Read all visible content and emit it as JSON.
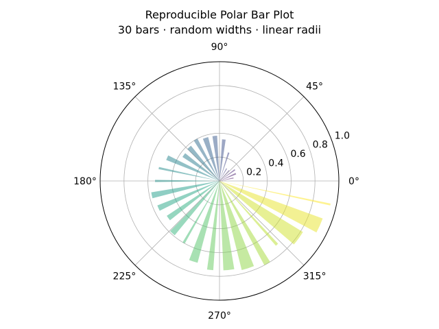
{
  "chart_data": {
    "type": "bar",
    "projection": "polar",
    "title": "Reproducible Polar Bar Plot",
    "subtitle": "30 bars · random widths · linear radii",
    "colormap": "viridis",
    "bar_alpha": 0.5,
    "rlim": [
      0,
      1.0
    ],
    "r_ticks": [
      "0.2",
      "0.4",
      "0.6",
      "0.8",
      "1.0"
    ],
    "r_tick_values": [
      0.2,
      0.4,
      0.6,
      0.8,
      1.0
    ],
    "theta_ticks": [
      "0°",
      "45°",
      "90°",
      "135°",
      "180°",
      "225°",
      "270°",
      "315°"
    ],
    "theta_tick_values": [
      0,
      45,
      90,
      135,
      180,
      225,
      270,
      315
    ],
    "grid": true,
    "bars": [
      {
        "theta": 0,
        "width": 4,
        "r": 0.03
      },
      {
        "theta": 12,
        "width": 4,
        "r": 0.12
      },
      {
        "theta": 24,
        "width": 5,
        "r": 0.15
      },
      {
        "theta": 36,
        "width": 4,
        "r": 0.16
      },
      {
        "theta": 48,
        "width": 3,
        "r": 0.12
      },
      {
        "theta": 60,
        "width": 4,
        "r": 0.12
      },
      {
        "theta": 72,
        "width": 3,
        "r": 0.25
      },
      {
        "theta": 84,
        "width": 5,
        "r": 0.35
      },
      {
        "theta": 96,
        "width": 6,
        "r": 0.38
      },
      {
        "theta": 108,
        "width": 7,
        "r": 0.38
      },
      {
        "theta": 120,
        "width": 5,
        "r": 0.4
      },
      {
        "theta": 132,
        "width": 6,
        "r": 0.38
      },
      {
        "theta": 144,
        "width": 6,
        "r": 0.37
      },
      {
        "theta": 156,
        "width": 5,
        "r": 0.48
      },
      {
        "theta": 168,
        "width": 2,
        "r": 0.52
      },
      {
        "theta": 180,
        "width": 2,
        "r": 0.54
      },
      {
        "theta": 192,
        "width": 5,
        "r": 0.58
      },
      {
        "theta": 204,
        "width": 5,
        "r": 0.56
      },
      {
        "theta": 216,
        "width": 5,
        "r": 0.53
      },
      {
        "theta": 228,
        "width": 5,
        "r": 0.59
      },
      {
        "theta": 240,
        "width": 2,
        "r": 0.6
      },
      {
        "theta": 252,
        "width": 6,
        "r": 0.71
      },
      {
        "theta": 264,
        "width": 4,
        "r": 0.75
      },
      {
        "theta": 276,
        "width": 7,
        "r": 0.75
      },
      {
        "theta": 288,
        "width": 8,
        "r": 0.77
      },
      {
        "theta": 300,
        "width": 4,
        "r": 0.8
      },
      {
        "theta": 312,
        "width": 2,
        "r": 0.72
      },
      {
        "theta": 324,
        "width": 9,
        "r": 0.82
      },
      {
        "theta": 336,
        "width": 8,
        "r": 0.92
      },
      {
        "theta": 348,
        "width": 1,
        "r": 0.95
      }
    ]
  }
}
